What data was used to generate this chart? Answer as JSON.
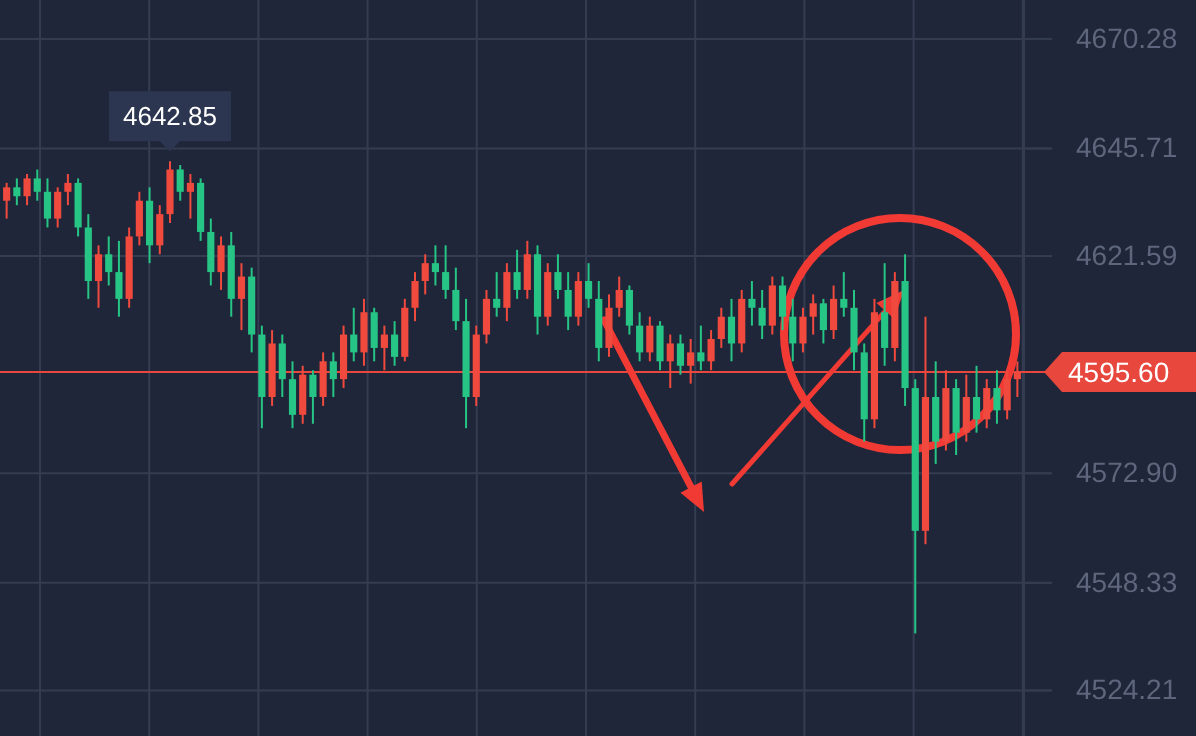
{
  "chart_data": {
    "type": "candlestick",
    "categories": [
      null,
      null,
      null,
      null,
      null,
      null,
      null,
      null,
      null,
      null,
      null,
      null,
      null,
      null,
      null,
      null,
      null,
      null,
      null,
      null,
      null,
      null,
      null,
      null,
      null,
      null,
      null,
      null,
      null,
      null,
      null,
      null,
      null,
      null,
      null,
      null,
      null,
      null,
      null,
      null,
      null,
      null,
      null,
      null,
      null,
      null,
      null,
      null,
      null,
      null,
      null,
      null,
      null,
      null,
      null,
      null,
      null,
      null,
      null,
      null,
      null,
      null,
      null,
      null,
      null,
      null,
      null,
      null,
      null,
      null,
      null,
      null,
      null,
      null,
      null,
      null,
      null,
      null,
      null,
      null,
      null,
      null,
      null,
      null,
      null,
      null,
      null,
      null,
      null,
      null,
      null,
      null,
      null,
      null,
      null,
      null,
      null,
      null,
      null,
      null
    ],
    "ohlc": [
      [
        4634,
        4638,
        4630,
        4637
      ],
      [
        4637,
        4639,
        4633,
        4635
      ],
      [
        4635,
        4640,
        4633,
        4639
      ],
      [
        4639,
        4641,
        4634,
        4636
      ],
      [
        4636,
        4639,
        4628,
        4630
      ],
      [
        4630,
        4637,
        4628,
        4636
      ],
      [
        4636,
        4640,
        4633,
        4638
      ],
      [
        4638,
        4639,
        4626,
        4628
      ],
      [
        4628,
        4631,
        4612,
        4616
      ],
      [
        4616,
        4624,
        4610,
        4622
      ],
      [
        4622,
        4626,
        4615,
        4618
      ],
      [
        4618,
        4625,
        4608,
        4612
      ],
      [
        4612,
        4628,
        4610,
        4626
      ],
      [
        4626,
        4636,
        4624,
        4634
      ],
      [
        4634,
        4637,
        4620,
        4624
      ],
      [
        4624,
        4633,
        4622,
        4631
      ],
      [
        4631,
        4642.85,
        4629,
        4641
      ],
      [
        4641,
        4642,
        4634,
        4636
      ],
      [
        4636,
        4640,
        4630,
        4638
      ],
      [
        4638,
        4639,
        4625,
        4627
      ],
      [
        4627,
        4630,
        4615,
        4618
      ],
      [
        4618,
        4626,
        4614,
        4624
      ],
      [
        4624,
        4627,
        4608,
        4612
      ],
      [
        4612,
        4620,
        4605,
        4617
      ],
      [
        4617,
        4619,
        4600,
        4604
      ],
      [
        4604,
        4606,
        4583,
        4590
      ],
      [
        4590,
        4605,
        4588,
        4602
      ],
      [
        4602,
        4604,
        4590,
        4594
      ],
      [
        4594,
        4598,
        4583,
        4586
      ],
      [
        4586,
        4597,
        4584,
        4595
      ],
      [
        4595,
        4596,
        4584,
        4590
      ],
      [
        4590,
        4600,
        4588,
        4598
      ],
      [
        4598,
        4600,
        4590,
        4594
      ],
      [
        4594,
        4606,
        4592,
        4604
      ],
      [
        4604,
        4610,
        4598,
        4600
      ],
      [
        4600,
        4612,
        4597,
        4609
      ],
      [
        4609,
        4610,
        4598,
        4601
      ],
      [
        4601,
        4606,
        4596,
        4604
      ],
      [
        4604,
        4607,
        4597,
        4599
      ],
      [
        4599,
        4612,
        4598,
        4610
      ],
      [
        4610,
        4618,
        4607,
        4616
      ],
      [
        4616,
        4622,
        4613,
        4620
      ],
      [
        4620,
        4624,
        4615,
        4618
      ],
      [
        4618,
        4624,
        4612,
        4614
      ],
      [
        4614,
        4619,
        4605,
        4607
      ],
      [
        4607,
        4612,
        4583,
        4590
      ],
      [
        4590,
        4606,
        4588,
        4604
      ],
      [
        4604,
        4614,
        4602,
        4612
      ],
      [
        4612,
        4618,
        4608,
        4610
      ],
      [
        4610,
        4620,
        4607,
        4618
      ],
      [
        4618,
        4623,
        4612,
        4614
      ],
      [
        4614,
        4625,
        4612,
        4622
      ],
      [
        4622,
        4624,
        4604,
        4608
      ],
      [
        4608,
        4620,
        4606,
        4618
      ],
      [
        4618,
        4622,
        4612,
        4614
      ],
      [
        4614,
        4618,
        4605,
        4608
      ],
      [
        4608,
        4618,
        4606,
        4616
      ],
      [
        4616,
        4620,
        4610,
        4612
      ],
      [
        4612,
        4616,
        4598,
        4601
      ],
      [
        4601,
        4613,
        4599,
        4610
      ],
      [
        4610,
        4617,
        4608,
        4614
      ],
      [
        4614,
        4615,
        4604,
        4606
      ],
      [
        4606,
        4609,
        4598,
        4600
      ],
      [
        4600,
        4608,
        4598,
        4606
      ],
      [
        4606,
        4607,
        4596,
        4598
      ],
      [
        4598,
        4604,
        4592,
        4602
      ],
      [
        4602,
        4604,
        4595,
        4597
      ],
      [
        4597,
        4603,
        4593,
        4600
      ],
      [
        4600,
        4606,
        4596,
        4598
      ],
      [
        4598,
        4605,
        4596,
        4603
      ],
      [
        4603,
        4610,
        4601,
        4608
      ],
      [
        4608,
        4612,
        4598,
        4602
      ],
      [
        4602,
        4614,
        4600,
        4612
      ],
      [
        4612,
        4616,
        4606,
        4610
      ],
      [
        4610,
        4614,
        4603,
        4606
      ],
      [
        4606,
        4617,
        4604,
        4615
      ],
      [
        4615,
        4617,
        4605,
        4608
      ],
      [
        4608,
        4612,
        4598,
        4602
      ],
      [
        4602,
        4610,
        4600,
        4608
      ],
      [
        4608,
        4613,
        4604,
        4611
      ],
      [
        4611,
        4612,
        4602,
        4605
      ],
      [
        4605,
        4615,
        4603,
        4612
      ],
      [
        4612,
        4618,
        4608,
        4610
      ],
      [
        4610,
        4614,
        4596,
        4600
      ],
      [
        4600,
        4602,
        4580,
        4585
      ],
      [
        4585,
        4612,
        4583,
        4609
      ],
      [
        4609,
        4620,
        4597,
        4601
      ],
      [
        4601,
        4618,
        4598,
        4616
      ],
      [
        4616,
        4622,
        4588,
        4592
      ],
      [
        4592,
        4594,
        4537,
        4560
      ],
      [
        4560,
        4608,
        4557,
        4590
      ],
      [
        4590,
        4598,
        4575,
        4580
      ],
      [
        4580,
        4596,
        4578,
        4592
      ],
      [
        4592,
        4594,
        4577,
        4582
      ],
      [
        4582,
        4595,
        4580,
        4590
      ],
      [
        4590,
        4597,
        4582,
        4585
      ],
      [
        4585,
        4594,
        4583,
        4592
      ],
      [
        4592,
        4596,
        4584,
        4587
      ],
      [
        4587,
        4596,
        4585,
        4594
      ],
      [
        4594,
        4598,
        4590,
        4595.6
      ]
    ],
    "colors": [
      "#f0493e",
      "#26c485",
      "#f0493e",
      "#26c485",
      "#26c485",
      "#f0493e",
      "#f0493e",
      "#26c485",
      "#26c485",
      "#f0493e",
      "#26c485",
      "#26c485",
      "#f0493e",
      "#f0493e",
      "#26c485",
      "#f0493e",
      "#f0493e",
      "#26c485",
      "#f0493e",
      "#26c485",
      "#26c485",
      "#f0493e",
      "#26c485",
      "#f0493e",
      "#26c485",
      "#26c485",
      "#f0493e",
      "#26c485",
      "#26c485",
      "#f0493e",
      "#26c485",
      "#f0493e",
      "#26c485",
      "#f0493e",
      "#26c485",
      "#f0493e",
      "#26c485",
      "#f0493e",
      "#26c485",
      "#f0493e",
      "#f0493e",
      "#f0493e",
      "#26c485",
      "#26c485",
      "#26c485",
      "#26c485",
      "#f0493e",
      "#f0493e",
      "#26c485",
      "#f0493e",
      "#26c485",
      "#f0493e",
      "#26c485",
      "#f0493e",
      "#26c485",
      "#26c485",
      "#f0493e",
      "#26c485",
      "#26c485",
      "#f0493e",
      "#f0493e",
      "#26c485",
      "#26c485",
      "#f0493e",
      "#26c485",
      "#f0493e",
      "#26c485",
      "#f0493e",
      "#26c485",
      "#f0493e",
      "#f0493e",
      "#26c485",
      "#f0493e",
      "#26c485",
      "#26c485",
      "#f0493e",
      "#26c485",
      "#26c485",
      "#f0493e",
      "#f0493e",
      "#26c485",
      "#f0493e",
      "#26c485",
      "#26c485",
      "#26c485",
      "#f0493e",
      "#26c485",
      "#f0493e",
      "#26c485",
      "#26c485",
      "#f0493e",
      "#26c485",
      "#f0493e",
      "#26c485",
      "#f0493e",
      "#26c485",
      "#f0493e",
      "#26c485",
      "#f0493e",
      "#f0493e"
    ],
    "ylim": [
      4514,
      4679
    ],
    "yticks": [
      4524.21,
      4548.33,
      {
        "value": 4572.9,
        "label": "4572.90"
      },
      4621.59,
      4645.71,
      4670.28
    ],
    "ref_lines": [
      {
        "axis": "y",
        "value": 4595.6,
        "label": "4595.60",
        "color": "#e8473e"
      }
    ],
    "annotations": [
      {
        "text": "4642.85",
        "y": 4642.85
      }
    ],
    "grid": true
  }
}
